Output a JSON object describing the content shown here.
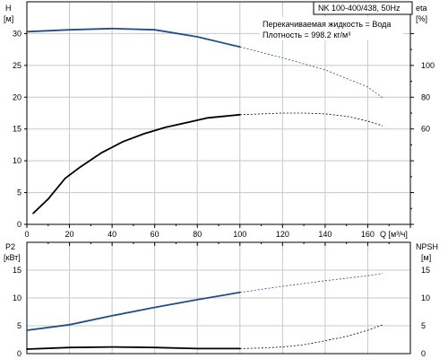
{
  "chart_data": [
    {
      "type": "line",
      "title": "NK 100-400/438, 50Hz",
      "annotations": [
        "Перекачиваемая жидкость = Вода",
        "Плотность = 998.2 кг/м³"
      ],
      "xlabel": "Q [м³/ч]",
      "ylabel_left_top": "H",
      "ylabel_left_unit": "[м]",
      "ylabel_right_top": "eta",
      "ylabel_right_unit": "[%]",
      "xlim": [
        0,
        180
      ],
      "ylim_left": [
        0,
        35
      ],
      "ylim_right": [
        0,
        140
      ],
      "x_ticks": [
        0,
        20,
        40,
        60,
        80,
        100,
        120,
        140,
        160
      ],
      "y_ticks_left": [
        0,
        5,
        10,
        15,
        20,
        25,
        30
      ],
      "y_ticks_right": [
        60,
        80,
        100
      ],
      "grid": true,
      "series": [
        {
          "axis": "left",
          "color": "#1f4e8c",
          "solid_until_x": 100,
          "x": [
            0,
            20,
            40,
            60,
            80,
            100,
            120,
            140,
            160,
            167
          ],
          "y": [
            30.3,
            30.6,
            30.8,
            30.6,
            29.5,
            27.9,
            26.2,
            24.3,
            21.6,
            19.9
          ]
        },
        {
          "axis": "right",
          "color": "#000000",
          "solid_until_x": 100,
          "x": [
            3,
            10,
            18,
            25,
            35,
            45,
            55,
            65,
            75,
            85,
            100,
            120,
            130,
            140,
            150,
            160,
            167
          ],
          "y": [
            7,
            16,
            29,
            36,
            45,
            52,
            57,
            61,
            64,
            67,
            69,
            70,
            70,
            69.5,
            68,
            65,
            62
          ]
        }
      ]
    },
    {
      "type": "line",
      "ylabel_left_top": "P2",
      "ylabel_left_unit": "[кВт]",
      "ylabel_right_top": "NPSH",
      "ylabel_right_unit": "[м]",
      "xlim": [
        0,
        180
      ],
      "ylim_left": [
        0,
        20
      ],
      "ylim_right": [
        0,
        20
      ],
      "y_ticks_left": [
        0,
        5,
        10,
        15
      ],
      "y_ticks_right": [
        0,
        5,
        10,
        15
      ],
      "grid": true,
      "series": [
        {
          "axis": "left",
          "color": "#1f4e8c",
          "solid_until_x": 100,
          "x": [
            0,
            20,
            40,
            60,
            80,
            100,
            120,
            140,
            160,
            167
          ],
          "y": [
            4.2,
            5.2,
            6.8,
            8.3,
            9.7,
            11.0,
            12.1,
            13.1,
            14.0,
            14.4
          ]
        },
        {
          "axis": "right",
          "color": "#000000",
          "solid_until_x": 100,
          "x": [
            0,
            20,
            40,
            60,
            80,
            100,
            110,
            120,
            130,
            140,
            150,
            160,
            167
          ],
          "y": [
            0.8,
            1.1,
            1.2,
            1.1,
            0.9,
            0.9,
            1.0,
            1.2,
            1.6,
            2.3,
            3.1,
            4.2,
            5.2
          ]
        }
      ]
    }
  ]
}
